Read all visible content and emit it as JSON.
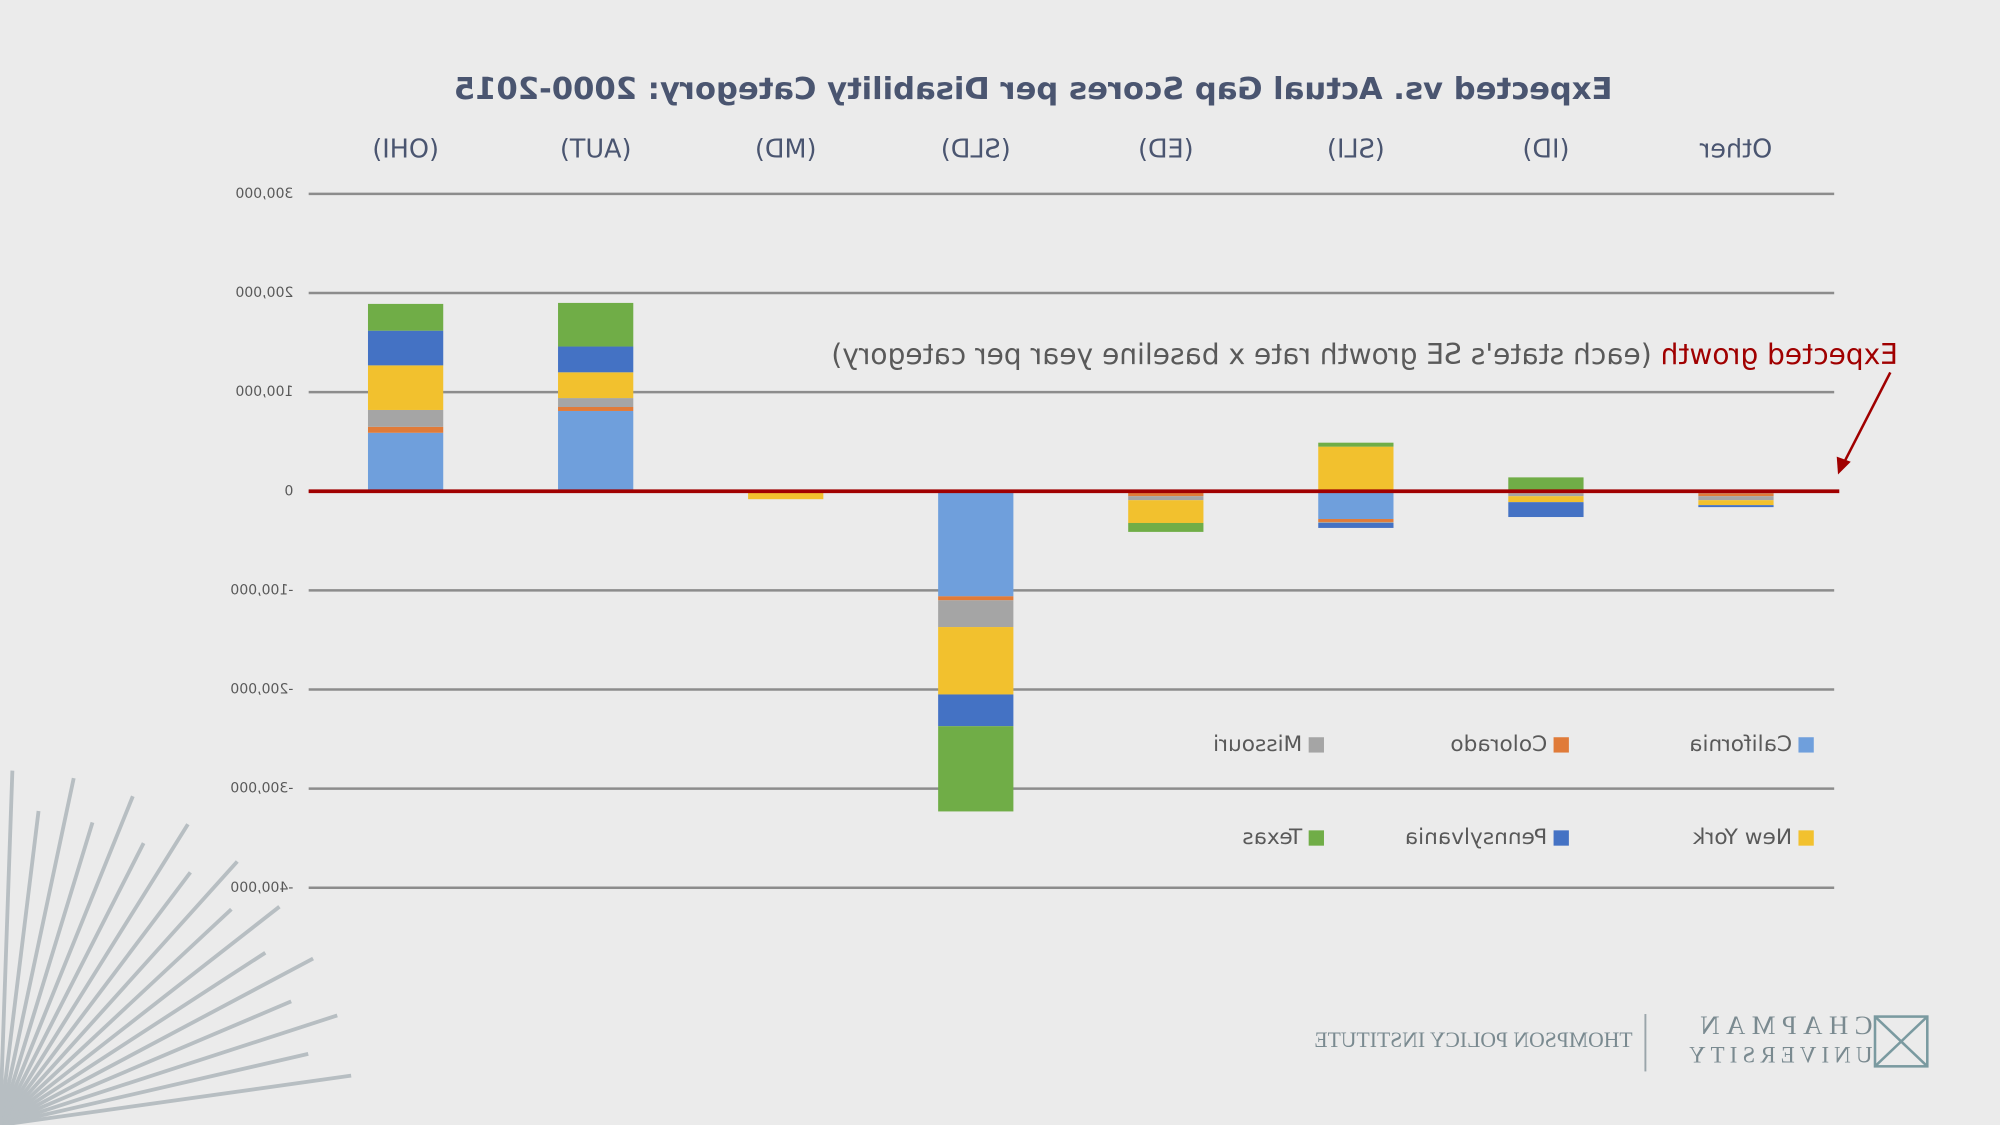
{
  "chart_data": {
    "type": "stacked-bar",
    "title": "Expected vs. Actual Gap Scores per Disability Category: 2000-2015",
    "categories": [
      "(OHI)",
      "(AUT)",
      "(MD)",
      "(SLD)",
      "(ED)",
      "(SLI)",
      "(ID)",
      "Other"
    ],
    "series": [
      {
        "name": "California",
        "color": "#6f9fdc",
        "values": [
          59000,
          81000,
          0,
          -106000,
          0,
          -28000,
          0,
          -2000
        ]
      },
      {
        "name": "Colorado",
        "color": "#e07b39",
        "values": [
          6000,
          4000,
          0,
          -4000,
          -5000,
          -3000,
          -2000,
          -3000
        ]
      },
      {
        "name": "Missouri",
        "color": "#a5a5a5",
        "values": [
          17000,
          9000,
          0,
          -27000,
          -4000,
          -1000,
          -3000,
          -4000
        ]
      },
      {
        "name": "New York",
        "color": "#f2c12e",
        "values": [
          45000,
          26000,
          -8000,
          -68000,
          -23000,
          45000,
          -6000,
          -5000
        ]
      },
      {
        "name": "Pennsylvania",
        "color": "#4472c4",
        "values": [
          35000,
          26000,
          0,
          -32000,
          0,
          -5000,
          -15000,
          -2000
        ]
      },
      {
        "name": "Texas",
        "color": "#70ad47",
        "values": [
          27000,
          44000,
          0,
          -86000,
          -9000,
          4000,
          14000,
          0
        ]
      }
    ],
    "ylim": [
      -400000,
      300000
    ],
    "yticks": [
      {
        "value": -400000,
        "label": "-400,000"
      },
      {
        "value": -300000,
        "label": "-300,000"
      },
      {
        "value": -200000,
        "label": "-200,000"
      },
      {
        "value": -100000,
        "label": "-100,000"
      },
      0,
      {
        "value": 100000,
        "label": "100,000"
      },
      {
        "value": 200000,
        "label": "200,000"
      },
      {
        "value": 300000,
        "label": "300,000"
      }
    ],
    "grid": true,
    "reference_line": {
      "value": 0,
      "color": "#a00000"
    },
    "annotation": {
      "label": "Expected growth",
      "text": "(each state's SE growth rate x baseline year per category)"
    },
    "mirrored": true
  },
  "footer": {
    "brand": "CHAPMAN",
    "brand_sub": "UNIVERSITY",
    "institute": "THOMPSON POLICY INSTITUTE"
  }
}
